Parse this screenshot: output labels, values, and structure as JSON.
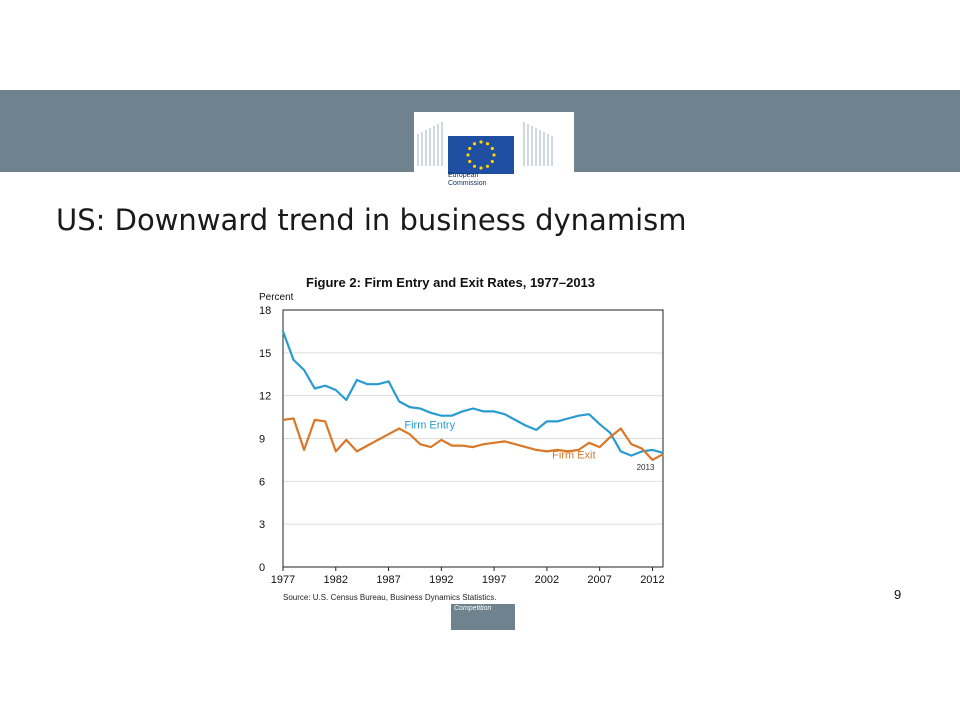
{
  "slide": {
    "title": "US: Downward trend in business dynamism",
    "page_number": "9",
    "logo_text": "European\nCommission",
    "footer_label": "Competition",
    "colors": {
      "banner": "#6e838d",
      "eu_flag_blue": "#1f4fa3",
      "eu_star_yellow": "#ffd200"
    }
  },
  "chart_data": {
    "type": "line",
    "title": "Figure 2: Firm Entry and Exit Rates, 1977–2013",
    "ylabel": "Percent",
    "xlabel": "",
    "ylim": [
      0,
      18
    ],
    "xlim": [
      1977,
      2013
    ],
    "y_ticks": [
      0,
      3,
      6,
      9,
      12,
      15,
      18
    ],
    "x_ticks": [
      1977,
      1982,
      1987,
      1992,
      1997,
      2002,
      2007,
      2012
    ],
    "grid": true,
    "source": "Source: U.S. Census Bureau, Business Dynamics Statistics.",
    "end_label": "2013",
    "x": [
      1977,
      1978,
      1979,
      1980,
      1981,
      1982,
      1983,
      1984,
      1985,
      1986,
      1987,
      1988,
      1989,
      1990,
      1991,
      1992,
      1993,
      1994,
      1995,
      1996,
      1997,
      1998,
      1999,
      2000,
      2001,
      2002,
      2003,
      2004,
      2005,
      2006,
      2007,
      2008,
      2009,
      2010,
      2011,
      2012,
      2013
    ],
    "series": [
      {
        "name": "Firm Entry",
        "color": "#2a9bd0",
        "values": [
          16.5,
          14.5,
          13.8,
          12.5,
          12.7,
          12.4,
          11.7,
          13.1,
          12.8,
          12.8,
          13.0,
          11.6,
          11.2,
          11.1,
          10.8,
          10.6,
          10.6,
          10.9,
          11.1,
          10.9,
          10.9,
          10.7,
          10.3,
          9.9,
          9.6,
          10.2,
          10.2,
          10.4,
          10.6,
          10.7,
          10.0,
          9.4,
          8.1,
          7.8,
          8.1,
          8.2,
          8.0
        ]
      },
      {
        "name": "Firm Exit",
        "color": "#d9782a",
        "values": [
          10.3,
          10.4,
          8.2,
          10.3,
          10.2,
          8.1,
          8.9,
          8.1,
          8.5,
          8.9,
          9.3,
          9.7,
          9.3,
          8.6,
          8.4,
          8.9,
          8.5,
          8.5,
          8.4,
          8.6,
          8.7,
          8.8,
          8.6,
          8.4,
          8.2,
          8.1,
          8.2,
          8.1,
          8.2,
          8.7,
          8.4,
          9.1,
          9.7,
          8.6,
          8.3,
          7.5,
          7.9
        ]
      }
    ]
  }
}
